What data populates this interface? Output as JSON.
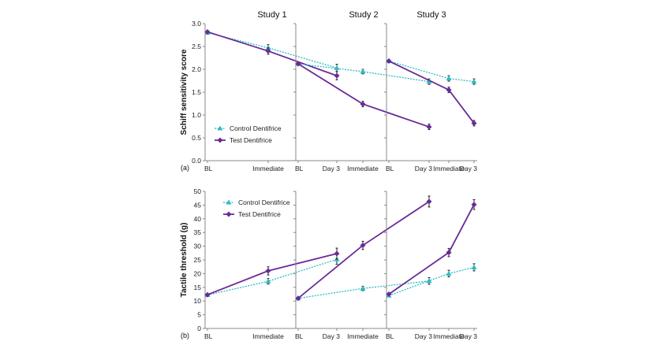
{
  "chart_data": [
    {
      "type": "line",
      "panel_label": "(a)",
      "ylabel": "Schiff sensitivity score",
      "ylim": [
        0,
        3.0
      ],
      "yticks": [
        "0.0",
        "0.5",
        "1.0",
        "1.5",
        "2.0",
        "2.5",
        "3.0"
      ],
      "categories": [
        "BL",
        "Immediate",
        "Day 3"
      ],
      "legend": {
        "placement": "bottom-left of first panel",
        "entries": [
          "Control Dentifrice",
          "Test Dentifrice"
        ]
      },
      "panels": [
        {
          "title": "Study 1",
          "series": [
            {
              "name": "Control Dentifrice",
              "values": [
                2.8,
                2.47,
                2.03
              ],
              "errors": [
                0.03,
                0.07,
                0.08
              ]
            },
            {
              "name": "Test Dentifrice",
              "values": [
                2.82,
                2.4,
                1.86
              ],
              "errors": [
                0.03,
                0.07,
                0.09
              ]
            }
          ]
        },
        {
          "title": "Study 2",
          "series": [
            {
              "name": "Control Dentifrice",
              "values": [
                2.12,
                1.95,
                1.73
              ],
              "errors": [
                0.03,
                0.05,
                0.06
              ]
            },
            {
              "name": "Test Dentifrice",
              "values": [
                2.12,
                1.24,
                0.74
              ],
              "errors": [
                0.03,
                0.06,
                0.06
              ]
            }
          ]
        },
        {
          "title": "Study 3",
          "series": [
            {
              "name": "Control Dentifrice",
              "values": [
                2.18,
                1.8,
                1.73
              ],
              "errors": [
                0.03,
                0.06,
                0.06
              ]
            },
            {
              "name": "Test Dentifrice",
              "values": [
                2.18,
                1.55,
                0.82
              ],
              "errors": [
                0.03,
                0.06,
                0.06
              ]
            }
          ]
        }
      ]
    },
    {
      "type": "line",
      "panel_label": "(b)",
      "ylabel": "Tactile threshold (g)",
      "ylim": [
        0,
        50
      ],
      "yticks": [
        "0",
        "5",
        "10",
        "15",
        "20",
        "25",
        "30",
        "35",
        "40",
        "45",
        "50"
      ],
      "categories": [
        "BL",
        "Immediate",
        "Day 3"
      ],
      "legend": {
        "placement": "top-left of first panel",
        "entries": [
          "Control Dentifrice",
          "Test Dentifrice"
        ]
      },
      "panels": [
        {
          "title": "",
          "series": [
            {
              "name": "Control Dentifrice",
              "values": [
                12.2,
                17.2,
                25.2
              ],
              "errors": [
                0.5,
                1.0,
                1.8
              ]
            },
            {
              "name": "Test Dentifrice",
              "values": [
                12.3,
                21.0,
                27.3
              ],
              "errors": [
                0.5,
                1.5,
                2.0
              ]
            }
          ]
        },
        {
          "title": "",
          "series": [
            {
              "name": "Control Dentifrice",
              "values": [
                11.0,
                14.6,
                17.3
              ],
              "errors": [
                0.5,
                0.8,
                1.2
              ]
            },
            {
              "name": "Test Dentifrice",
              "values": [
                11.0,
                30.3,
                46.3
              ],
              "errors": [
                0.5,
                1.5,
                2.0
              ]
            }
          ]
        },
        {
          "title": "",
          "series": [
            {
              "name": "Control Dentifrice",
              "values": [
                12.0,
                20.0,
                22.3
              ],
              "errors": [
                0.5,
                1.2,
                1.3
              ]
            },
            {
              "name": "Test Dentifrice",
              "values": [
                12.5,
                27.7,
                45.2
              ],
              "errors": [
                0.5,
                1.5,
                1.8
              ]
            }
          ]
        }
      ]
    }
  ],
  "colors": {
    "control": "#2bbcc4",
    "test": "#6a2a96",
    "error": "#222222"
  }
}
